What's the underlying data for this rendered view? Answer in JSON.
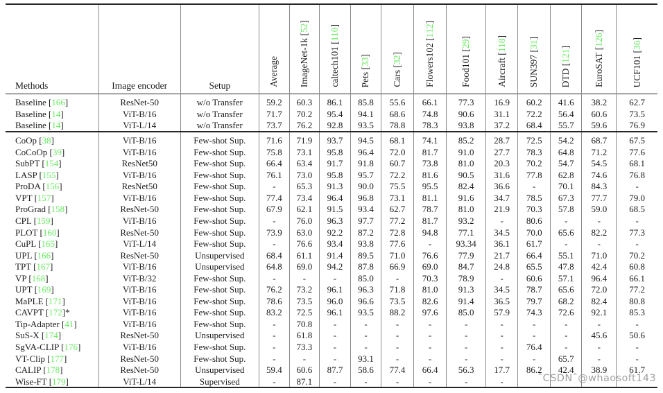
{
  "colors": {
    "cite_green": "#67eb5f",
    "rule_dark": "#262626",
    "rule_gray": "#8a8a8a"
  },
  "watermark": {
    "text": "ˆCSDNˆ@whaosoft143"
  },
  "table": {
    "static_columns": [
      "Methods",
      "Image encoder",
      "Setup"
    ],
    "dataset_columns": [
      {
        "label": "Average",
        "cite": ""
      },
      {
        "label": "ImageNet-1k",
        "cite": "52"
      },
      {
        "label": "caltech101",
        "cite": "110"
      },
      {
        "label": "Pets",
        "cite": "33"
      },
      {
        "label": "Cars",
        "cite": "32"
      },
      {
        "label": "Flowers102",
        "cite": "112"
      },
      {
        "label": "Food101",
        "cite": "29"
      },
      {
        "label": "Aircraft",
        "cite": "118"
      },
      {
        "label": "SUN397",
        "cite": "31"
      },
      {
        "label": "DTD",
        "cite": "121"
      },
      {
        "label": "EuroSAT",
        "cite": "126"
      },
      {
        "label": "UCF101",
        "cite": "36"
      }
    ],
    "sections": [
      {
        "name": "baseline",
        "rows": [
          {
            "method": "Baseline",
            "cite": "166",
            "suffix": "",
            "encoder": "ResNet-50",
            "setup": "w/o Transfer",
            "values": [
              "59.2",
              "60.3",
              "86.1",
              "85.8",
              "55.6",
              "66.1",
              "77.3",
              "16.9",
              "60.2",
              "41.6",
              "38.2",
              "62.7"
            ]
          },
          {
            "method": "Baseline",
            "cite": "14",
            "suffix": "",
            "encoder": "ViT-B/16",
            "setup": "w/o Transfer",
            "values": [
              "71.7",
              "70.2",
              "95.4",
              "94.1",
              "68.6",
              "74.8",
              "90.6",
              "31.1",
              "72.2",
              "56.4",
              "60.6",
              "73.5"
            ]
          },
          {
            "method": "Baseline",
            "cite": "14",
            "suffix": "",
            "encoder": "ViT-L/14",
            "setup": "w/o Transfer",
            "values": [
              "73.7",
              "76.2",
              "92.8",
              "93.5",
              "78.8",
              "78.3",
              "93.8",
              "37.2",
              "68.4",
              "55.7",
              "59.6",
              "76.9"
            ]
          }
        ]
      },
      {
        "name": "methods",
        "rows": [
          {
            "method": "CoOp",
            "cite": "38",
            "suffix": "",
            "encoder": "ViT-B/16",
            "setup": "Few-shot Sup.",
            "values": [
              "71.6",
              "71.9",
              "93.7",
              "94.5",
              "68.1",
              "74.1",
              "85.2",
              "28.7",
              "72.5",
              "54.2",
              "68.7",
              "67.5"
            ]
          },
          {
            "method": "CoCoOp",
            "cite": "39",
            "suffix": "",
            "encoder": "ViT-B/16",
            "setup": "Few-shot Sup.",
            "values": [
              "75.8",
              "73.1",
              "95.8",
              "96.4",
              "72.0",
              "81.7",
              "91.0",
              "27.7",
              "78.3",
              "64.8",
              "71.2",
              "77.6"
            ]
          },
          {
            "method": "SubPT",
            "cite": "154",
            "suffix": "",
            "encoder": "ResNet50",
            "setup": "Few-shot Sup.",
            "values": [
              "66.4",
              "63.4",
              "91.7",
              "91.8",
              "60.7",
              "73.8",
              "81.0",
              "20.3",
              "70.2",
              "54.7",
              "54.5",
              "68.1"
            ]
          },
          {
            "method": "LASP",
            "cite": "155",
            "suffix": "",
            "encoder": "ViT-B/16",
            "setup": "Few-shot Sup.",
            "values": [
              "76.1",
              "73.0",
              "95.8",
              "95.7",
              "72.2",
              "81.6",
              "90.5",
              "31.6",
              "77.8",
              "62.8",
              "74.6",
              "76.8"
            ]
          },
          {
            "method": "ProDA",
            "cite": "156",
            "suffix": "",
            "encoder": "ResNet50",
            "setup": "Few-shot Sup.",
            "values": [
              "-",
              "65.3",
              "91.3",
              "90.0",
              "75.5",
              "95.5",
              "82.4",
              "36.6",
              "-",
              "70.1",
              "84.3",
              "-"
            ]
          },
          {
            "method": "VPT",
            "cite": "157",
            "suffix": "",
            "encoder": "ViT-B/16",
            "setup": "Few-shot Sup.",
            "values": [
              "77.4",
              "73.4",
              "96.4",
              "96.8",
              "73.1",
              "81.1",
              "91.6",
              "34.7",
              "78.5",
              "67.3",
              "77.7",
              "79.0"
            ]
          },
          {
            "method": "ProGrad",
            "cite": "158",
            "suffix": "",
            "encoder": "ResNet-50",
            "setup": "Few-shot Sup.",
            "values": [
              "67.9",
              "62.1",
              "91.5",
              "93.4",
              "62.7",
              "78.7",
              "81.0",
              "21.9",
              "70.3",
              "57.8",
              "59.0",
              "68.5"
            ]
          },
          {
            "method": "CPL",
            "cite": "159",
            "suffix": "",
            "encoder": "ViT-B/16",
            "setup": "Few-shot Sup.",
            "values": [
              "-",
              "76.0",
              "96.3",
              "97.7",
              "77.2",
              "81.7",
              "93.2",
              "-",
              "80.6",
              "-",
              "-",
              "-"
            ]
          },
          {
            "method": "PLOT",
            "cite": "160",
            "suffix": "",
            "encoder": "ResNet-50",
            "setup": "Few-shot Sup.",
            "values": [
              "73.9",
              "63.0",
              "92.2",
              "87.2",
              "72.8",
              "94.8",
              "77.1",
              "34.5",
              "70.0",
              "65.6",
              "82.2",
              "77.3"
            ]
          },
          {
            "method": "CuPL",
            "cite": "165",
            "suffix": "",
            "encoder": "ViT-L/14",
            "setup": "Few-shot Sup.",
            "values": [
              "-",
              "76.6",
              "93.4",
              "93.8",
              "77.6",
              "-",
              "93.34",
              "36.1",
              "61.7",
              "-",
              "-",
              "-"
            ]
          },
          {
            "method": "UPL",
            "cite": "166",
            "suffix": "",
            "encoder": "ResNet-50",
            "setup": "Unsupervised",
            "values": [
              "68.4",
              "61.1",
              "91.4",
              "89.5",
              "71.0",
              "76.6",
              "77.9",
              "21.7",
              "66.4",
              "55.1",
              "71.0",
              "70.2"
            ]
          },
          {
            "method": "TPT",
            "cite": "167",
            "suffix": "",
            "encoder": "ViT-B/16",
            "setup": "Unsupervised",
            "values": [
              "64.8",
              "69.0",
              "94.2",
              "87.8",
              "66.9",
              "69.0",
              "84.7",
              "24.8",
              "65.5",
              "47.8",
              "42.4",
              "60.8"
            ]
          },
          {
            "method": "VP",
            "cite": "168",
            "suffix": "",
            "encoder": "ViT-B/32",
            "setup": "Few-shot Sup.",
            "values": [
              "-",
              "-",
              "-",
              "85.0",
              "-",
              "70.3",
              "78.9",
              "-",
              "60.6",
              "57.1",
              "96.4",
              "66.1"
            ]
          },
          {
            "method": "UPT",
            "cite": "169",
            "suffix": "",
            "encoder": "ViT-B/16",
            "setup": "Few-shot Sup.",
            "values": [
              "76.2",
              "73.2",
              "96.1",
              "96.3",
              "71.8",
              "81.0",
              "91.3",
              "34.5",
              "78.7",
              "65.6",
              "72.0",
              "77.2"
            ]
          },
          {
            "method": "MaPLE",
            "cite": "171",
            "suffix": "",
            "encoder": "ViT-B/16",
            "setup": "Few-shot Sup.",
            "values": [
              "78.6",
              "73.5",
              "96.0",
              "96.6",
              "73.5",
              "82.6",
              "91.4",
              "36.5",
              "79.7",
              "68.2",
              "82.4",
              "80.8"
            ]
          },
          {
            "method": "CAVPT",
            "cite": "172",
            "suffix": "*",
            "encoder": "ViT-B/16",
            "setup": "Few-shot Sup.",
            "values": [
              "83.2",
              "72.5",
              "96.1",
              "93.5",
              "88.2",
              "97.6",
              "85.0",
              "57.9",
              "74.3",
              "72.6",
              "92.1",
              "85.3"
            ]
          },
          {
            "method": "Tip-Adapter",
            "cite": "41",
            "suffix": "",
            "encoder": "ViT-B/16",
            "setup": "Few-shot Sup.",
            "values": [
              "-",
              "70.8",
              "-",
              "-",
              "-",
              "-",
              "-",
              "-",
              "-",
              "-",
              "-",
              "-"
            ]
          },
          {
            "method": "SuS-X",
            "cite": "174",
            "suffix": "",
            "encoder": "ResNet-50",
            "setup": "Unsupervised",
            "values": [
              "-",
              "61.8",
              "-",
              "-",
              "-",
              "-",
              "-",
              "-",
              "-",
              "-",
              "45.6",
              "50.6"
            ]
          },
          {
            "method": "SgVA-CLIP",
            "cite": "176",
            "suffix": "",
            "encoder": "ViT-B/16",
            "setup": "Few-shot Sup.",
            "values": [
              "-",
              "73.3",
              "-",
              "-",
              "-",
              "-",
              "-",
              "-",
              "76.4",
              "-",
              "-",
              "-"
            ]
          },
          {
            "method": "VT-Clip",
            "cite": "177",
            "suffix": "",
            "encoder": "ResNet-50",
            "setup": "Few-shot Sup.",
            "values": [
              "-",
              "-",
              "-",
              "93.1",
              "-",
              "-",
              "-",
              "-",
              "-",
              "65.7",
              "-",
              "-"
            ]
          },
          {
            "method": "CALIP",
            "cite": "178",
            "suffix": "",
            "encoder": "ResNet-50",
            "setup": "Unsupervised",
            "values": [
              "59.4",
              "60.6",
              "87.7",
              "58.6",
              "77.4",
              "66.4",
              "56.3",
              "17.7",
              "86.2",
              "42.4",
              "38.9",
              "61.7"
            ]
          },
          {
            "method": "Wise-FT",
            "cite": "179",
            "suffix": "",
            "encoder": "ViT-L/14",
            "setup": "Supervised",
            "values": [
              "-",
              "87.1",
              "-",
              "-",
              "-",
              "-",
              "-",
              "-",
              "",
              "",
              "",
              ""
            ]
          }
        ]
      }
    ]
  }
}
